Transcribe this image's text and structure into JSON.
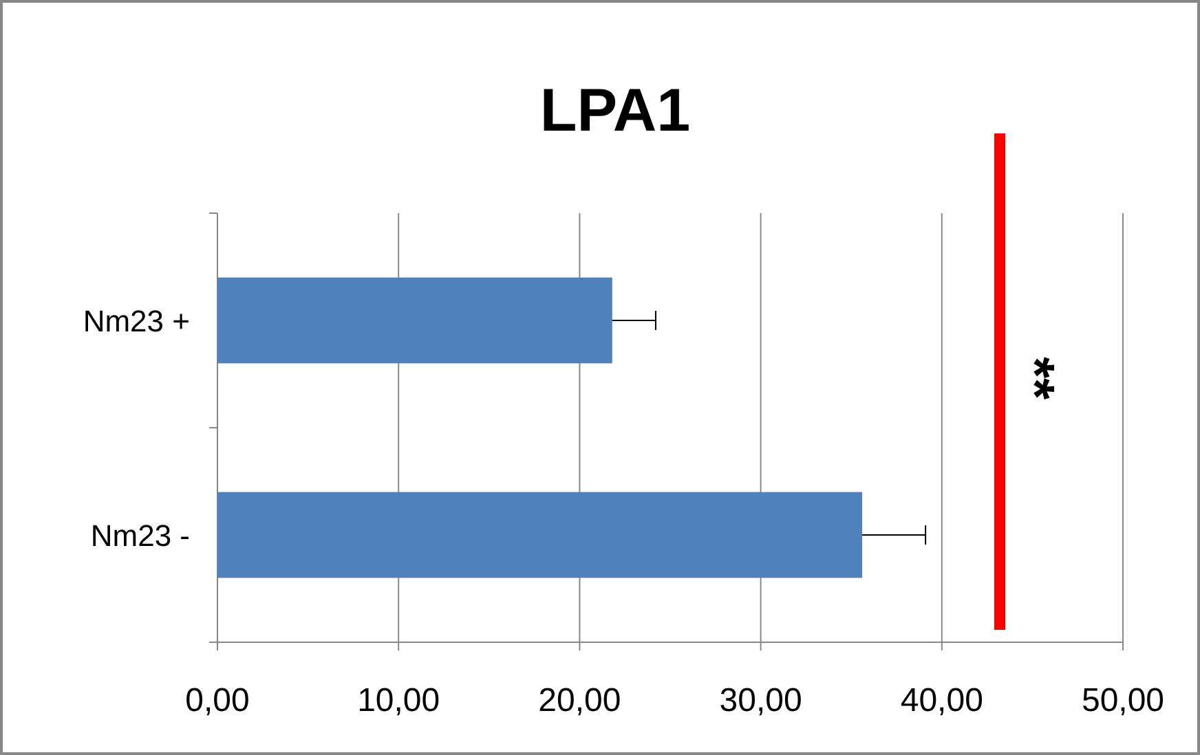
{
  "chart_data": {
    "type": "bar",
    "title": "LPA1",
    "orientation": "horizontal",
    "categories": [
      "Nm23 +",
      "Nm23 -"
    ],
    "values": [
      21.8,
      35.6
    ],
    "errors": [
      2.4,
      3.5
    ],
    "color": "#4f81bd",
    "xlim": [
      0,
      50
    ],
    "xticks": [
      {
        "value": 0,
        "label": "0,00"
      },
      {
        "value": 10,
        "label": "10,00"
      },
      {
        "value": 20,
        "label": "20,00"
      },
      {
        "value": 30,
        "label": "30,00"
      },
      {
        "value": 40,
        "label": "40,00"
      },
      {
        "value": 50,
        "label": "50,00"
      }
    ],
    "grid": "x",
    "annotations": [
      "**"
    ]
  }
}
